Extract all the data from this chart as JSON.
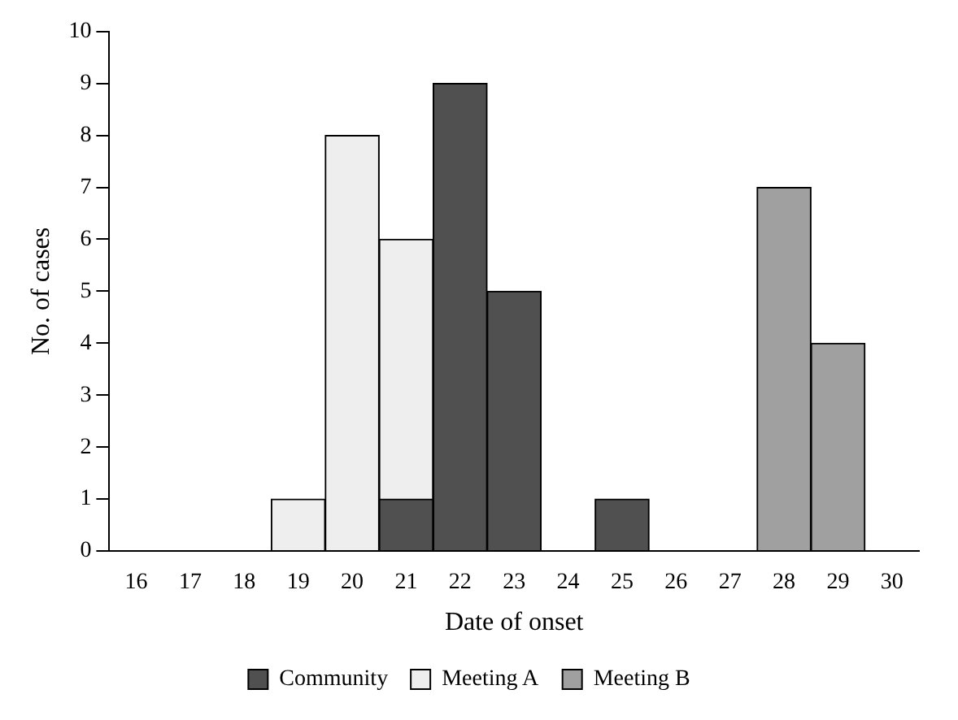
{
  "chart_data": {
    "type": "bar",
    "xlabel": "Date of onset",
    "ylabel": "No. of cases",
    "categories": [
      "16",
      "17",
      "18",
      "19",
      "20",
      "21",
      "22",
      "23",
      "24",
      "25",
      "26",
      "27",
      "28",
      "29",
      "30"
    ],
    "series": [
      {
        "name": "Community",
        "color": "#505050",
        "values": [
          0,
          0,
          0,
          0,
          0,
          1,
          9,
          5,
          0,
          1,
          0,
          0,
          0,
          0,
          0
        ]
      },
      {
        "name": "Meeting A",
        "color": "#eeeeee",
        "values": [
          0,
          0,
          0,
          1,
          8,
          5,
          0,
          0,
          0,
          0,
          0,
          0,
          0,
          0,
          0
        ]
      },
      {
        "name": "Meeting B",
        "color": "#a0a0a0",
        "values": [
          0,
          0,
          0,
          0,
          0,
          0,
          0,
          0,
          0,
          0,
          0,
          0,
          7,
          4,
          0
        ]
      }
    ],
    "stacked": true,
    "ylim": [
      0,
      10
    ],
    "yticks": [
      0,
      1,
      2,
      3,
      4,
      5,
      6,
      7,
      8,
      9,
      10
    ],
    "grid": false,
    "legend": "bottom"
  }
}
